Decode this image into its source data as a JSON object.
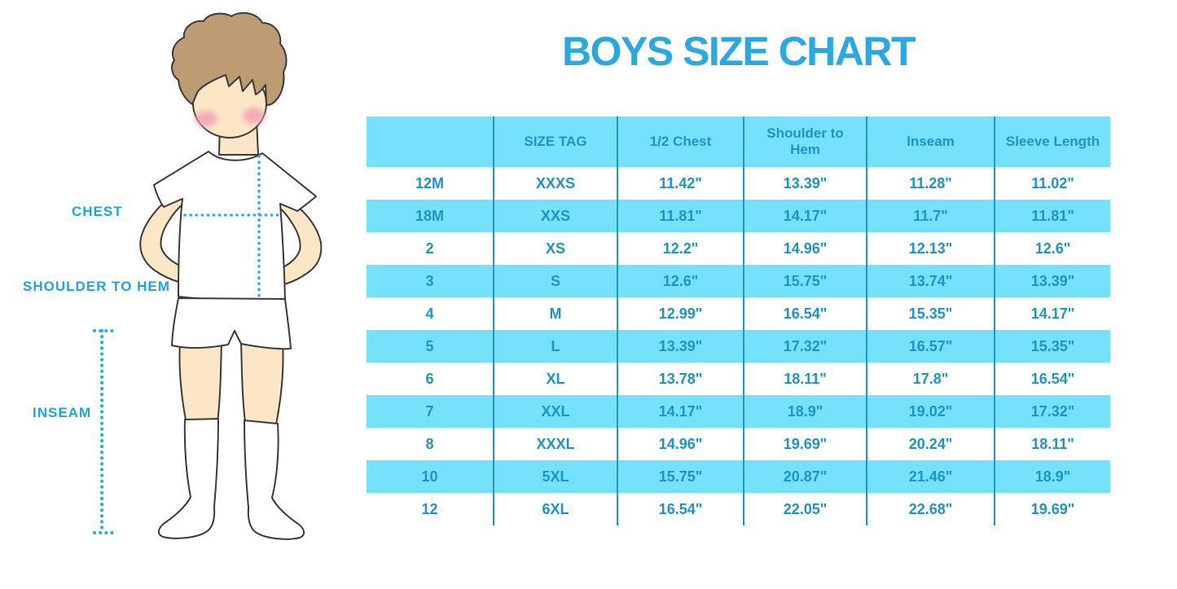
{
  "figure": {
    "labels": {
      "chest": "CHEST",
      "shoulder_to_hem": "SHOULDER TO HEM",
      "inseam": "INSEAM"
    }
  },
  "colors": {
    "title_blue": "#2ba8e0",
    "label_blue": "#1da5dd",
    "table_fill": "#76e1fb",
    "table_text": "#1e93c6",
    "table_divider": "#2196c9",
    "dot_blue": "#2aabe4",
    "skin": "#fbe7c6",
    "hair": "#bd9b73",
    "cheek": "#f2a0b2",
    "outline": "#3a3a3a",
    "garment": "#ffffff"
  },
  "chart_data": {
    "type": "table",
    "title": "BOYS SIZE CHART",
    "headers": [
      "",
      "SIZE TAG",
      "1/2 Chest",
      "Shoulder to Hem",
      "Inseam",
      "Sleeve Length"
    ],
    "rows": [
      [
        "12M",
        "XXXS",
        "11.42\"",
        "13.39\"",
        "11.28\"",
        "11.02\""
      ],
      [
        "18M",
        "XXS",
        "11.81\"",
        "14.17\"",
        "11.7\"",
        "11.81\""
      ],
      [
        "2",
        "XS",
        "12.2\"",
        "14.96\"",
        "12.13\"",
        "12.6\""
      ],
      [
        "3",
        "S",
        "12.6\"",
        "15.75\"",
        "13.74\"",
        "13.39\""
      ],
      [
        "4",
        "M",
        "12.99\"",
        "16.54\"",
        "15.35\"",
        "14.17\""
      ],
      [
        "5",
        "L",
        "13.39\"",
        "17.32\"",
        "16.57\"",
        "15.35\""
      ],
      [
        "6",
        "XL",
        "13.78\"",
        "18.11\"",
        "17.8\"",
        "16.54\""
      ],
      [
        "7",
        "XXL",
        "14.17\"",
        "18.9\"",
        "19.02\"",
        "17.32\""
      ],
      [
        "8",
        "XXXL",
        "14.96\"",
        "19.69\"",
        "20.24\"",
        "18.11\""
      ],
      [
        "10",
        "5XL",
        "15.75\"",
        "20.87\"",
        "21.46\"",
        "18.9\""
      ],
      [
        "12",
        "6XL",
        "16.54\"",
        "22.05\"",
        "22.68\"",
        "19.69\""
      ]
    ],
    "row_shading": "alternating white and light-cyan, header cyan",
    "measurement_unit": "inches"
  }
}
